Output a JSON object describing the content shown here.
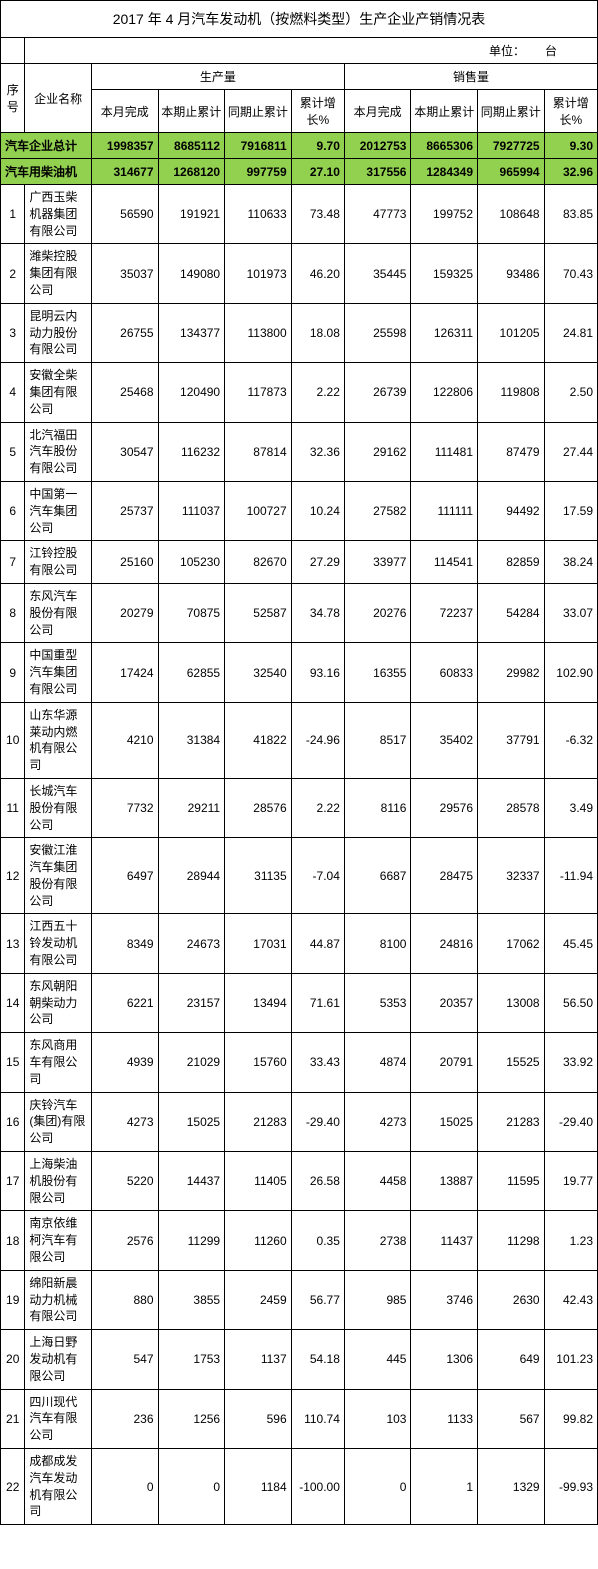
{
  "title": "2017 年 4 月汽车发动机（按燃料类型）生产企业产销情况表",
  "unit_label": "单位：",
  "unit_value": "台",
  "header": {
    "seq": "序号",
    "company": "企业名称",
    "production": "生产量",
    "sales": "销售量",
    "month_done": "本月完成",
    "period_cum": "本期止累计",
    "same_period_cum": "同期止累计",
    "cum_growth": "累计增长%"
  },
  "green_rows": [
    {
      "name": "汽车企业总计",
      "p1": "1998357",
      "p2": "8685112",
      "p3": "7916811",
      "p4": "9.70",
      "s1": "2012753",
      "s2": "8665306",
      "s3": "7927725",
      "s4": "9.30"
    },
    {
      "name": "汽车用柴油机",
      "p1": "314677",
      "p2": "1268120",
      "p3": "997759",
      "p4": "27.10",
      "s1": "317556",
      "s2": "1284349",
      "s3": "965994",
      "s4": "32.96"
    }
  ],
  "rows": [
    {
      "seq": "1",
      "name": "广西玉柴机器集团有限公司",
      "p1": "56590",
      "p2": "191921",
      "p3": "110633",
      "p4": "73.48",
      "s1": "47773",
      "s2": "199752",
      "s3": "108648",
      "s4": "83.85"
    },
    {
      "seq": "2",
      "name": "潍柴控股集团有限公司",
      "p1": "35037",
      "p2": "149080",
      "p3": "101973",
      "p4": "46.20",
      "s1": "35445",
      "s2": "159325",
      "s3": "93486",
      "s4": "70.43"
    },
    {
      "seq": "3",
      "name": "昆明云内动力股份有限公司",
      "p1": "26755",
      "p2": "134377",
      "p3": "113800",
      "p4": "18.08",
      "s1": "25598",
      "s2": "126311",
      "s3": "101205",
      "s4": "24.81"
    },
    {
      "seq": "4",
      "name": "安徽全柴集团有限公司",
      "p1": "25468",
      "p2": "120490",
      "p3": "117873",
      "p4": "2.22",
      "s1": "26739",
      "s2": "122806",
      "s3": "119808",
      "s4": "2.50"
    },
    {
      "seq": "5",
      "name": "北汽福田汽车股份有限公司",
      "p1": "30547",
      "p2": "116232",
      "p3": "87814",
      "p4": "32.36",
      "s1": "29162",
      "s2": "111481",
      "s3": "87479",
      "s4": "27.44"
    },
    {
      "seq": "6",
      "name": "中国第一汽车集团公司",
      "p1": "25737",
      "p2": "111037",
      "p3": "100727",
      "p4": "10.24",
      "s1": "27582",
      "s2": "111111",
      "s3": "94492",
      "s4": "17.59"
    },
    {
      "seq": "7",
      "name": "江铃控股有限公司",
      "p1": "25160",
      "p2": "105230",
      "p3": "82670",
      "p4": "27.29",
      "s1": "33977",
      "s2": "114541",
      "s3": "82859",
      "s4": "38.24"
    },
    {
      "seq": "8",
      "name": "东风汽车股份有限公司",
      "p1": "20279",
      "p2": "70875",
      "p3": "52587",
      "p4": "34.78",
      "s1": "20276",
      "s2": "72237",
      "s3": "54284",
      "s4": "33.07"
    },
    {
      "seq": "9",
      "name": "中国重型汽车集团有限公司",
      "p1": "17424",
      "p2": "62855",
      "p3": "32540",
      "p4": "93.16",
      "s1": "16355",
      "s2": "60833",
      "s3": "29982",
      "s4": "102.90"
    },
    {
      "seq": "10",
      "name": "山东华源莱动内燃机有限公司",
      "p1": "4210",
      "p2": "31384",
      "p3": "41822",
      "p4": "-24.96",
      "s1": "8517",
      "s2": "35402",
      "s3": "37791",
      "s4": "-6.32"
    },
    {
      "seq": "11",
      "name": "长城汽车股份有限公司",
      "p1": "7732",
      "p2": "29211",
      "p3": "28576",
      "p4": "2.22",
      "s1": "8116",
      "s2": "29576",
      "s3": "28578",
      "s4": "3.49"
    },
    {
      "seq": "12",
      "name": "安徽江淮汽车集团股份有限公司",
      "p1": "6497",
      "p2": "28944",
      "p3": "31135",
      "p4": "-7.04",
      "s1": "6687",
      "s2": "28475",
      "s3": "32337",
      "s4": "-11.94"
    },
    {
      "seq": "13",
      "name": "江西五十铃发动机有限公司",
      "p1": "8349",
      "p2": "24673",
      "p3": "17031",
      "p4": "44.87",
      "s1": "8100",
      "s2": "24816",
      "s3": "17062",
      "s4": "45.45"
    },
    {
      "seq": "14",
      "name": "东风朝阳朝柴动力公司",
      "p1": "6221",
      "p2": "23157",
      "p3": "13494",
      "p4": "71.61",
      "s1": "5353",
      "s2": "20357",
      "s3": "13008",
      "s4": "56.50"
    },
    {
      "seq": "15",
      "name": "东风商用车有限公司",
      "p1": "4939",
      "p2": "21029",
      "p3": "15760",
      "p4": "33.43",
      "s1": "4874",
      "s2": "20791",
      "s3": "15525",
      "s4": "33.92"
    },
    {
      "seq": "16",
      "name": "庆铃汽车(集团)有限公司",
      "p1": "4273",
      "p2": "15025",
      "p3": "21283",
      "p4": "-29.40",
      "s1": "4273",
      "s2": "15025",
      "s3": "21283",
      "s4": "-29.40"
    },
    {
      "seq": "17",
      "name": "上海柴油机股份有限公司",
      "p1": "5220",
      "p2": "14437",
      "p3": "11405",
      "p4": "26.58",
      "s1": "4458",
      "s2": "13887",
      "s3": "11595",
      "s4": "19.77"
    },
    {
      "seq": "18",
      "name": "南京依维柯汽车有限公司",
      "p1": "2576",
      "p2": "11299",
      "p3": "11260",
      "p4": "0.35",
      "s1": "2738",
      "s2": "11437",
      "s3": "11298",
      "s4": "1.23"
    },
    {
      "seq": "19",
      "name": "绵阳新晨动力机械有限公司",
      "p1": "880",
      "p2": "3855",
      "p3": "2459",
      "p4": "56.77",
      "s1": "985",
      "s2": "3746",
      "s3": "2630",
      "s4": "42.43"
    },
    {
      "seq": "20",
      "name": "上海日野发动机有限公司",
      "p1": "547",
      "p2": "1753",
      "p3": "1137",
      "p4": "54.18",
      "s1": "445",
      "s2": "1306",
      "s3": "649",
      "s4": "101.23"
    },
    {
      "seq": "21",
      "name": "四川现代汽车有限公司",
      "p1": "236",
      "p2": "1256",
      "p3": "596",
      "p4": "110.74",
      "s1": "103",
      "s2": "1133",
      "s3": "567",
      "s4": "99.82"
    },
    {
      "seq": "22",
      "name": "成都成发汽车发动机有限公司",
      "p1": "0",
      "p2": "0",
      "p3": "1184",
      "p4": "-100.00",
      "s1": "0",
      "s2": "1",
      "s3": "1329",
      "s4": "-99.93"
    }
  ]
}
